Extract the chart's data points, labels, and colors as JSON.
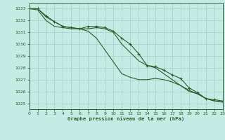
{
  "title": "Graphe pression niveau de la mer (hPa)",
  "background_color": "#c5ece4",
  "grid_color": "#aad4cc",
  "line_color": "#2d5a2d",
  "xlim": [
    0,
    23
  ],
  "ylim": [
    1024.5,
    1033.5
  ],
  "yticks": [
    1025,
    1026,
    1027,
    1028,
    1029,
    1030,
    1031,
    1032,
    1033
  ],
  "xticks": [
    0,
    1,
    2,
    3,
    4,
    5,
    6,
    7,
    8,
    9,
    10,
    11,
    12,
    13,
    14,
    15,
    16,
    17,
    18,
    19,
    20,
    21,
    22,
    23
  ],
  "series": [
    {
      "y": [
        1033.0,
        1033.0,
        1032.4,
        1031.9,
        1031.5,
        1031.4,
        1031.3,
        1031.5,
        1031.5,
        1031.4,
        1031.1,
        1030.5,
        1030.0,
        1029.2,
        1028.2,
        1028.1,
        1027.8,
        1027.4,
        1027.1,
        1026.3,
        1025.9,
        1025.4,
        1025.3,
        1025.2
      ],
      "marker": true
    },
    {
      "y": [
        1033.0,
        1033.0,
        1032.3,
        1031.9,
        1031.5,
        1031.4,
        1031.3,
        1031.3,
        1031.4,
        1031.3,
        1031.0,
        1030.0,
        1029.3,
        1028.6,
        1028.2,
        1028.0,
        1027.5,
        1027.0,
        1026.5,
        1026.0,
        1025.8,
        1025.4,
        1025.2,
        1025.1
      ],
      "marker": false
    },
    {
      "y": [
        1033.0,
        1032.9,
        1032.0,
        1031.5,
        1031.4,
        1031.3,
        1031.3,
        1031.1,
        1030.5,
        1029.5,
        1028.5,
        1027.5,
        1027.2,
        1027.0,
        1027.0,
        1027.1,
        1027.0,
        1026.8,
        1026.5,
        1026.1,
        1025.8,
        1025.4,
        1025.2,
        1025.1
      ],
      "marker": false
    }
  ],
  "figsize": [
    3.2,
    2.0
  ],
  "dpi": 100
}
